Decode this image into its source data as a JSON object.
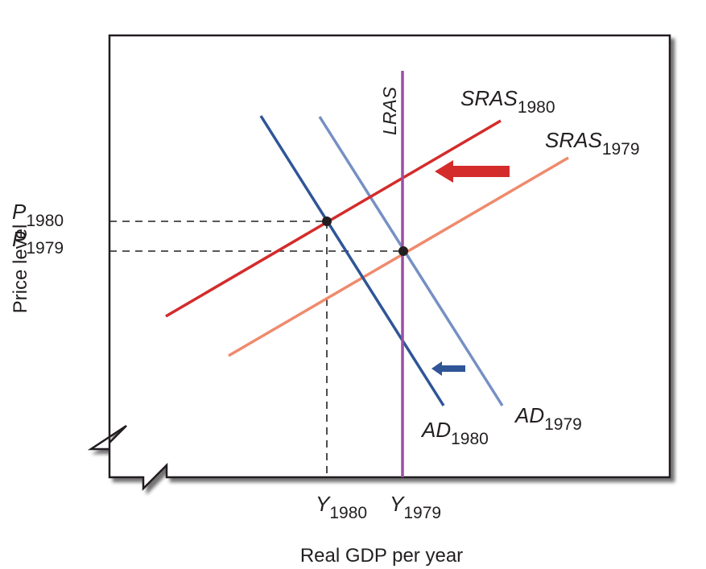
{
  "axes": {
    "y_label": "Price level",
    "x_label": "Real GDP per year"
  },
  "curves": {
    "lras": {
      "main": "LRAS",
      "color": "#9b4fa3"
    },
    "sras_1980": {
      "main": "SRAS",
      "sub": "1980",
      "color": "#d42b2b"
    },
    "sras_1979": {
      "main": "SRAS",
      "sub": "1979",
      "color": "#ef8a6c"
    },
    "ad_1980": {
      "main": "AD",
      "sub": "1980",
      "color": "#2f5597"
    },
    "ad_1979": {
      "main": "AD",
      "sub": "1979",
      "color": "#7690c4"
    }
  },
  "price_ticks": {
    "p_1980": {
      "main": "P",
      "sub": "1980"
    },
    "p_1979": {
      "main": "P",
      "sub": "1979"
    }
  },
  "output_ticks": {
    "y_1980": {
      "main": "Y",
      "sub": "1980"
    },
    "y_1979": {
      "main": "Y",
      "sub": "1979"
    }
  },
  "shift_arrows": {
    "sras_shift": {
      "direction": "left",
      "color": "#d42b2b"
    },
    "ad_shift": {
      "direction": "left",
      "color": "#2f5597"
    }
  }
}
